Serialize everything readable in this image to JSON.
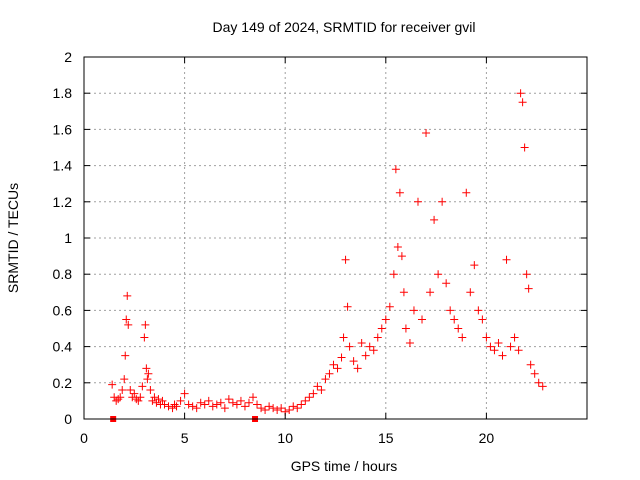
{
  "chart_data": {
    "type": "scatter",
    "title": "Day 149 of 2024, SRMTID for receiver gvil",
    "xlabel": "GPS time / hours",
    "ylabel": "SRMTID / TECUs",
    "xlim": [
      0,
      25
    ],
    "ylim": [
      0,
      2
    ],
    "xticks": [
      "0",
      "5",
      "10",
      "15",
      "20"
    ],
    "xtick_values": [
      0,
      5,
      10,
      15,
      20
    ],
    "yticks": [
      "0",
      "0.2",
      "0.4",
      "0.6",
      "0.8",
      "1",
      "1.2",
      "1.4",
      "1.6",
      "1.8",
      "2"
    ],
    "ytick_values": [
      0,
      0.2,
      0.4,
      0.6,
      0.8,
      1.0,
      1.2,
      1.4,
      1.6,
      1.8,
      2.0
    ],
    "grid": true,
    "marker": "+",
    "color": "#ff0000",
    "series": [
      {
        "name": "gvil",
        "x": [
          1.4,
          1.5,
          1.6,
          1.7,
          1.8,
          1.9,
          2.0,
          2.05,
          2.1,
          2.15,
          2.2,
          2.3,
          2.4,
          2.5,
          2.6,
          2.7,
          2.8,
          2.9,
          3.0,
          3.05,
          3.1,
          3.15,
          3.2,
          3.3,
          3.4,
          3.5,
          3.6,
          3.7,
          3.8,
          3.9,
          4.0,
          4.2,
          4.4,
          4.5,
          4.6,
          4.8,
          5.0,
          5.2,
          5.4,
          5.6,
          5.8,
          6.0,
          6.2,
          6.4,
          6.6,
          6.8,
          7.0,
          7.2,
          7.4,
          7.6,
          7.8,
          8.0,
          8.2,
          8.4,
          8.6,
          8.8,
          9.0,
          9.2,
          9.4,
          9.6,
          9.8,
          10.0,
          10.2,
          10.4,
          10.6,
          10.8,
          11.0,
          11.2,
          11.4,
          11.6,
          11.8,
          12.0,
          12.2,
          12.4,
          12.6,
          12.8,
          12.9,
          13.0,
          13.1,
          13.2,
          13.4,
          13.6,
          13.8,
          14.0,
          14.2,
          14.4,
          14.6,
          14.8,
          15.0,
          15.2,
          15.4,
          15.5,
          15.6,
          15.7,
          15.8,
          15.9,
          16.0,
          16.2,
          16.4,
          16.6,
          16.8,
          17.0,
          17.2,
          17.4,
          17.6,
          17.8,
          18.0,
          18.2,
          18.4,
          18.6,
          18.8,
          19.0,
          19.2,
          19.4,
          19.6,
          19.8,
          20.0,
          20.2,
          20.4,
          20.6,
          20.8,
          21.0,
          21.2,
          21.4,
          21.6,
          21.7,
          21.8,
          21.9,
          22.0,
          22.1,
          22.2,
          22.4,
          22.6,
          22.8,
          1.45,
          8.5
        ],
        "y": [
          0.19,
          0.12,
          0.1,
          0.11,
          0.12,
          0.16,
          0.22,
          0.35,
          0.55,
          0.68,
          0.52,
          0.16,
          0.12,
          0.14,
          0.11,
          0.1,
          0.12,
          0.18,
          0.45,
          0.52,
          0.28,
          0.22,
          0.25,
          0.16,
          0.1,
          0.12,
          0.09,
          0.11,
          0.08,
          0.1,
          0.08,
          0.07,
          0.06,
          0.08,
          0.07,
          0.1,
          0.14,
          0.08,
          0.07,
          0.06,
          0.09,
          0.08,
          0.1,
          0.07,
          0.08,
          0.09,
          0.06,
          0.11,
          0.09,
          0.08,
          0.1,
          0.07,
          0.09,
          0.12,
          0.08,
          0.06,
          0.05,
          0.07,
          0.06,
          0.05,
          0.06,
          0.04,
          0.05,
          0.07,
          0.06,
          0.08,
          0.1,
          0.12,
          0.14,
          0.18,
          0.16,
          0.22,
          0.25,
          0.3,
          0.28,
          0.34,
          0.45,
          0.88,
          0.62,
          0.4,
          0.32,
          0.28,
          0.42,
          0.35,
          0.4,
          0.38,
          0.45,
          0.5,
          0.55,
          0.62,
          0.8,
          1.38,
          0.95,
          1.25,
          0.9,
          0.7,
          0.5,
          0.42,
          0.6,
          1.2,
          0.55,
          1.58,
          0.7,
          1.1,
          0.8,
          1.2,
          0.75,
          0.6,
          0.55,
          0.5,
          0.45,
          1.25,
          0.7,
          0.85,
          0.6,
          0.55,
          0.45,
          0.4,
          0.38,
          0.42,
          0.35,
          0.88,
          0.4,
          0.45,
          0.38,
          1.8,
          1.75,
          1.5,
          0.8,
          0.72,
          0.3,
          0.25,
          0.2,
          0.18,
          0.0,
          0.0
        ]
      }
    ]
  }
}
